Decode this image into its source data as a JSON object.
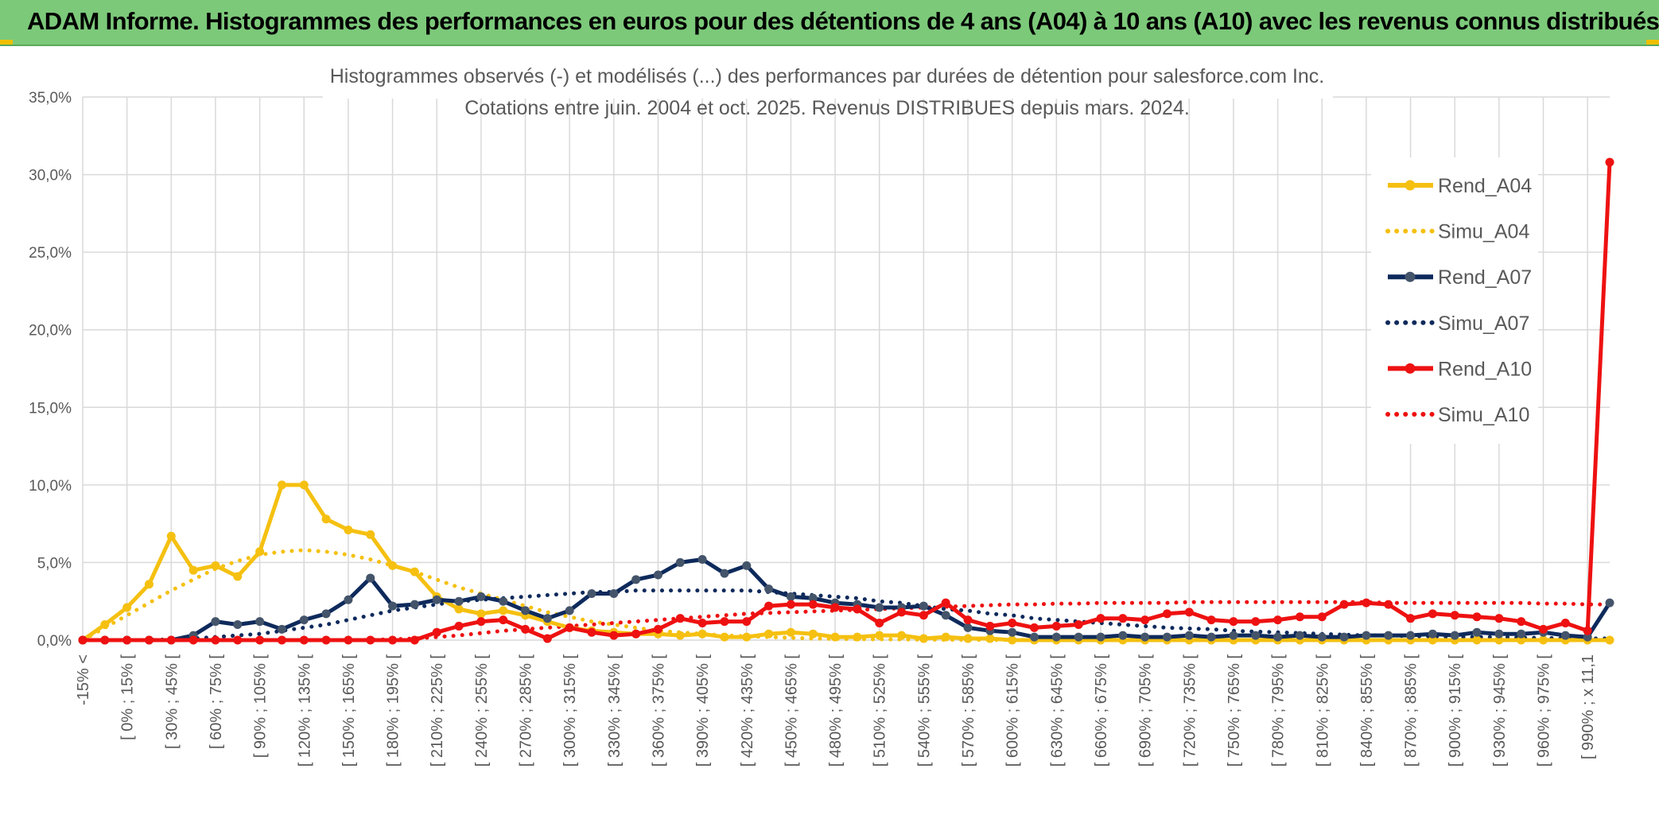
{
  "banner": {
    "title": "ADAM Informe. Histogrammes des performances en euros pour des détentions de 4 ans (A04) à 10 ans (A10) avec les revenus connus distribués"
  },
  "chart_data": {
    "type": "line",
    "title_line1": "Histogrammes observés (-) et modélisés (...) des performances par durées de détention pour salesforce.com Inc.",
    "title_line2": "Cotations entre juin. 2004 et oct. 2025. Revenus DISTRIBUES depuis mars. 2024.",
    "ylim": [
      0,
      35
    ],
    "yticks": [
      0,
      5,
      10,
      15,
      20,
      25,
      30,
      35
    ],
    "ytick_labels": [
      "0,0%",
      "5,0%",
      "10,0%",
      "15,0%",
      "20,0%",
      "25,0%",
      "30,0%",
      "35,0%"
    ],
    "grid": true,
    "legend_position": "right",
    "categories": [
      "-15% <",
      "",
      "[ 0% ; 15% [",
      "",
      "[ 30% ; 45% [",
      "",
      "[ 60% ; 75% [",
      "",
      "[ 90% ; 105% [",
      "",
      "[ 120% ; 135% [",
      "",
      "[ 150% ; 165% [",
      "",
      "[ 180% ; 195% [",
      "",
      "[ 210% ; 225% [",
      "",
      "[ 240% ; 255% [",
      "",
      "[ 270% ; 285% [",
      "",
      "[ 300% ; 315% [",
      "",
      "[ 330% ; 345% [",
      "",
      "[ 360% ; 375% [",
      "",
      "[ 390% ; 405% [",
      "",
      "[ 420% ; 435% [",
      "",
      "[ 450% ; 465% [",
      "",
      "[ 480% ; 495% [",
      "",
      "[ 510% ; 525% [",
      "",
      "[ 540% ; 555% [",
      "",
      "[ 570% ; 585% [",
      "",
      "[ 600% ; 615% [",
      "",
      "[ 630% ; 645% [",
      "",
      "[ 660% ; 675% [",
      "",
      "[ 690% ; 705% [",
      "",
      "[ 720% ; 735% [",
      "",
      "[ 750% ; 765% [",
      "",
      "[ 780% ; 795% [",
      "",
      "[ 810% ; 825% [",
      "",
      "[ 840% ; 855% [",
      "",
      "[ 870% ; 885% [",
      "",
      "[ 900% ; 915% [",
      "",
      "[ 930% ; 945% [",
      "",
      "[ 960% ; 975% [",
      "",
      "[ 990% ; x 11,1",
      ""
    ],
    "series": [
      {
        "name": "Rend_A04",
        "style": "solid",
        "markers": true,
        "color": "#f5c010",
        "values": [
          0.0,
          1.0,
          2.1,
          3.6,
          6.7,
          4.5,
          4.8,
          4.1,
          5.7,
          10.0,
          10.0,
          7.8,
          7.1,
          6.8,
          4.8,
          4.4,
          2.8,
          2.0,
          1.7,
          1.9,
          1.6,
          1.2,
          0.8,
          0.6,
          0.5,
          0.4,
          0.4,
          0.3,
          0.4,
          0.2,
          0.2,
          0.4,
          0.5,
          0.4,
          0.2,
          0.2,
          0.3,
          0.3,
          0.1,
          0.2,
          0.1,
          0.1,
          0.0,
          0.0,
          0.0,
          0.0,
          0.0,
          0.0,
          0.0,
          0.0,
          0.0,
          0.0,
          0.0,
          0.0,
          0.0,
          0.0,
          0.0,
          0.0,
          0.0,
          0.0,
          0.0,
          0.0,
          0.0,
          0.0,
          0.0,
          0.0,
          0.0,
          0.0,
          0.0,
          0.0
        ]
      },
      {
        "name": "Simu_A04",
        "style": "dotted",
        "markers": false,
        "color": "#f5c010",
        "values": [
          0.0,
          0.8,
          1.6,
          2.4,
          3.2,
          3.9,
          4.6,
          5.1,
          5.5,
          5.7,
          5.8,
          5.7,
          5.5,
          5.2,
          4.8,
          4.4,
          3.9,
          3.4,
          3.0,
          2.6,
          2.2,
          1.8,
          1.5,
          1.2,
          1.0,
          0.8,
          0.6,
          0.5,
          0.4,
          0.3,
          0.25,
          0.2,
          0.15,
          0.1,
          0.08,
          0.06,
          0.05,
          0.04,
          0.03,
          0.02,
          0.02,
          0.01,
          0.01,
          0.01,
          0.0,
          0.0,
          0.0,
          0.0,
          0.0,
          0.0,
          0.0,
          0.0,
          0.0,
          0.0,
          0.0,
          0.0,
          0.0,
          0.0,
          0.0,
          0.0,
          0.0,
          0.0,
          0.0,
          0.0,
          0.0,
          0.0,
          0.0,
          0.0,
          0.0,
          0.0
        ]
      },
      {
        "name": "Rend_A07",
        "style": "solid",
        "markers": true,
        "color": "#0e2a5c",
        "values": [
          0.0,
          0.0,
          0.0,
          0.0,
          0.0,
          0.3,
          1.2,
          1.0,
          1.2,
          0.7,
          1.3,
          1.7,
          2.6,
          4.0,
          2.2,
          2.3,
          2.6,
          2.5,
          2.8,
          2.5,
          1.9,
          1.4,
          1.9,
          3.0,
          3.0,
          3.9,
          4.2,
          5.0,
          5.2,
          4.3,
          4.8,
          3.3,
          2.8,
          2.7,
          2.4,
          2.3,
          2.1,
          2.1,
          2.2,
          1.6,
          0.8,
          0.6,
          0.5,
          0.2,
          0.2,
          0.2,
          0.2,
          0.3,
          0.2,
          0.2,
          0.3,
          0.2,
          0.3,
          0.3,
          0.2,
          0.3,
          0.2,
          0.2,
          0.3,
          0.3,
          0.3,
          0.4,
          0.3,
          0.5,
          0.4,
          0.4,
          0.5,
          0.3,
          0.2,
          2.4
        ]
      },
      {
        "name": "Simu_A07",
        "style": "dotted",
        "markers": false,
        "color": "#0e2a5c",
        "values": [
          0.0,
          0.0,
          0.0,
          0.0,
          0.05,
          0.1,
          0.2,
          0.3,
          0.4,
          0.6,
          0.8,
          1.0,
          1.3,
          1.6,
          1.9,
          2.1,
          2.3,
          2.5,
          2.6,
          2.7,
          2.8,
          2.9,
          3.0,
          3.1,
          3.1,
          3.2,
          3.2,
          3.2,
          3.2,
          3.2,
          3.2,
          3.1,
          3.0,
          2.9,
          2.8,
          2.7,
          2.5,
          2.4,
          2.2,
          2.0,
          1.9,
          1.7,
          1.6,
          1.4,
          1.3,
          1.2,
          1.1,
          1.0,
          0.9,
          0.8,
          0.75,
          0.7,
          0.6,
          0.55,
          0.5,
          0.45,
          0.4,
          0.35,
          0.3,
          0.3,
          0.25,
          0.25,
          0.2,
          0.2,
          0.2,
          0.15,
          0.15,
          0.1,
          0.1,
          0.1
        ]
      },
      {
        "name": "Rend_A10",
        "style": "solid",
        "markers": true,
        "color": "#ee1111",
        "values": [
          0.0,
          0.0,
          0.0,
          0.0,
          0.0,
          0.0,
          0.0,
          0.0,
          0.0,
          0.0,
          0.0,
          0.0,
          0.0,
          0.0,
          0.0,
          0.0,
          0.5,
          0.9,
          1.2,
          1.3,
          0.7,
          0.1,
          0.8,
          0.5,
          0.3,
          0.4,
          0.7,
          1.4,
          1.1,
          1.2,
          1.2,
          2.2,
          2.3,
          2.3,
          2.1,
          2.0,
          1.1,
          1.8,
          1.6,
          2.4,
          1.3,
          0.9,
          1.1,
          0.8,
          0.9,
          1.0,
          1.4,
          1.4,
          1.3,
          1.7,
          1.8,
          1.3,
          1.2,
          1.2,
          1.3,
          1.5,
          1.5,
          2.3,
          2.4,
          2.3,
          1.4,
          1.7,
          1.6,
          1.5,
          1.4,
          1.2,
          0.7,
          1.1,
          0.6,
          30.8
        ]
      },
      {
        "name": "Simu_A10",
        "style": "dotted",
        "markers": false,
        "color": "#ee1111",
        "values": [
          0.0,
          0.0,
          0.0,
          0.0,
          0.0,
          0.0,
          0.0,
          0.0,
          0.0,
          0.0,
          0.0,
          0.0,
          0.0,
          0.02,
          0.05,
          0.1,
          0.2,
          0.3,
          0.45,
          0.6,
          0.7,
          0.8,
          0.9,
          1.0,
          1.1,
          1.2,
          1.3,
          1.4,
          1.5,
          1.6,
          1.7,
          1.75,
          1.8,
          1.85,
          1.9,
          1.95,
          2.0,
          2.05,
          2.1,
          2.15,
          2.2,
          2.25,
          2.3,
          2.3,
          2.35,
          2.35,
          2.4,
          2.4,
          2.4,
          2.4,
          2.45,
          2.45,
          2.45,
          2.45,
          2.45,
          2.45,
          2.45,
          2.45,
          2.45,
          2.4,
          2.4,
          2.4,
          2.4,
          2.4,
          2.4,
          2.4,
          2.35,
          2.35,
          2.3,
          2.3
        ]
      }
    ]
  }
}
